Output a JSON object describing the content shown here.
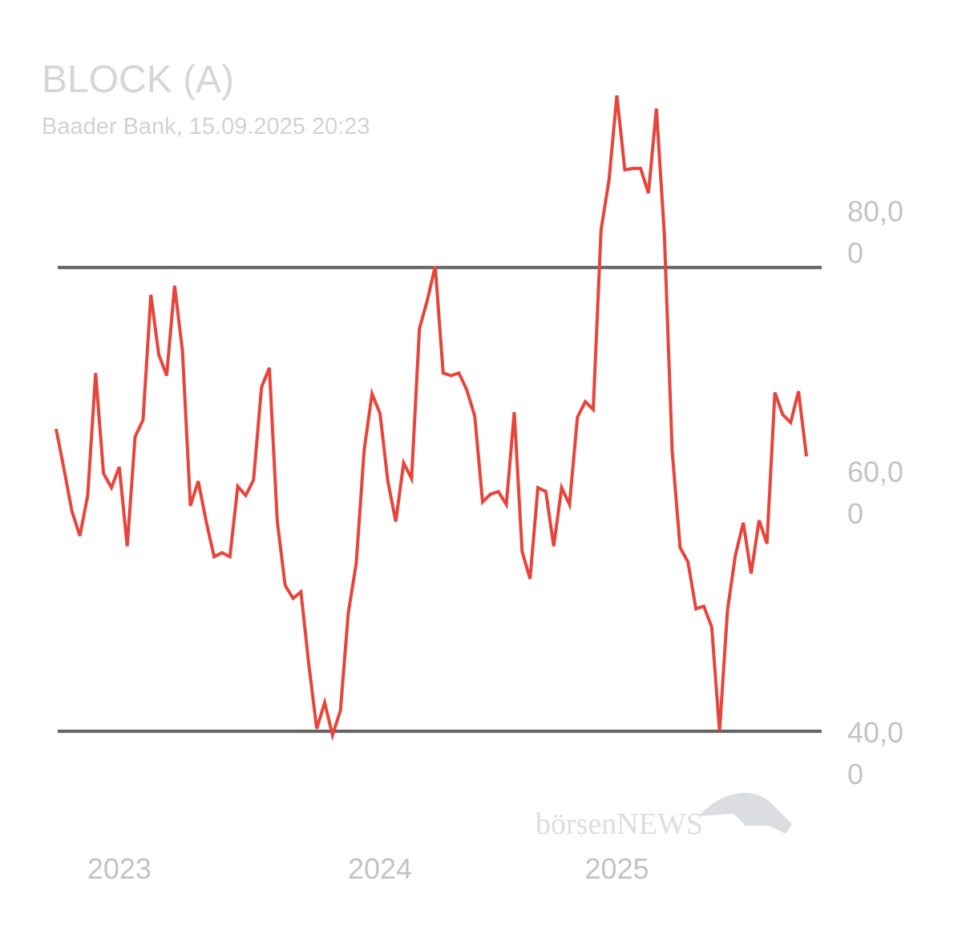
{
  "chart_data": {
    "type": "line",
    "title": "BLOCK (A)",
    "subtitle": "Baader Bank, 15.09.2025 20:23",
    "watermark": "börsenNEWS",
    "categories": [
      null,
      null,
      null,
      null,
      null,
      null,
      null,
      null,
      "2023",
      null,
      null,
      null,
      null,
      null,
      null,
      null,
      null,
      null,
      null,
      null,
      null,
      null,
      null,
      null,
      null,
      null,
      null,
      null,
      null,
      null,
      null,
      null,
      null,
      null,
      null,
      null,
      null,
      null,
      null,
      null,
      null,
      "2024",
      null,
      null,
      null,
      null,
      null,
      null,
      null,
      null,
      null,
      null,
      null,
      null,
      null,
      null,
      null,
      null,
      null,
      null,
      null,
      null,
      null,
      null,
      null,
      null,
      null,
      null,
      null,
      null,
      null,
      "2025",
      null,
      null,
      null,
      null,
      null,
      null,
      null,
      null,
      null,
      null,
      null,
      null,
      null,
      null,
      null,
      null,
      null,
      null,
      null,
      null,
      null,
      null,
      null,
      null
    ],
    "series": [
      {
        "color": "#e8443a",
        "values": [
          63.3,
          60.2,
          57.0,
          55.1,
          58.2,
          67.6,
          59.9,
          58.8,
          60.4,
          54.3,
          62.7,
          64.0,
          73.6,
          69.0,
          67.4,
          74.3,
          69.3,
          57.4,
          59.3,
          56.2,
          53.5,
          53.8,
          53.5,
          58.9,
          58.2,
          59.4,
          66.5,
          68.0,
          56.2,
          51.3,
          50.3,
          50.8,
          45.2,
          40.3,
          42.3,
          39.8,
          41.7,
          49.2,
          53.0,
          61.7,
          66.0,
          64.5,
          59.3,
          56.2,
          60.7,
          59.5,
          71.0,
          73.2,
          75.8,
          67.6,
          67.4,
          67.6,
          66.3,
          64.3,
          57.7,
          58.3,
          58.5,
          57.5,
          64.6,
          53.9,
          51.8,
          58.8,
          58.5,
          54.3,
          58.8,
          57.5,
          64.2,
          65.4,
          64.8,
          78.6,
          82.4,
          88.9,
          83.2,
          83.3,
          83.3,
          81.4,
          87.9,
          78.3,
          61.6,
          54.2,
          53.1,
          49.5,
          49.7,
          48.1,
          40.1,
          49.4,
          53.6,
          56.1,
          52.2,
          56.3,
          54.5,
          66.1,
          64.4,
          63.8,
          66.2,
          61.2
        ]
      }
    ],
    "hlines": [
      75.7,
      40.1
    ],
    "hline_color": "#606060",
    "ylim": [
      35,
      95
    ],
    "yticks": [
      {
        "value": 40,
        "label": "40,00"
      },
      {
        "value": 60,
        "label": "60,00"
      },
      {
        "value": 80,
        "label": "80,00"
      }
    ]
  }
}
